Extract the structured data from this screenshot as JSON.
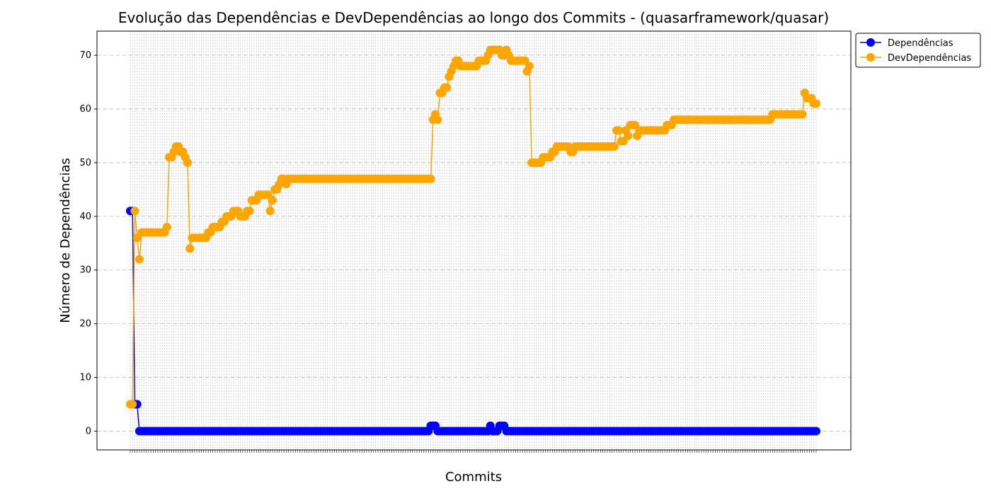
{
  "chart_data": {
    "type": "line",
    "title": "Evolução das Dependências e DevDependências ao longo dos Commits - (quasarframework/quasar)",
    "xlabel": "Commits",
    "ylabel": "Número de Dependências",
    "ylim": [
      -3.5,
      74.5
    ],
    "yticks": [
      0,
      10,
      20,
      30,
      40,
      50,
      60,
      70
    ],
    "grid": true,
    "legend_placement": "upper-right-outside",
    "x_count": 300,
    "series": [
      {
        "name": "Dependências",
        "color": "#0000ff",
        "segments": [
          [
            0,
            41
          ],
          [
            1,
            41
          ],
          [
            2,
            5
          ],
          [
            3,
            5
          ],
          [
            4,
            0
          ],
          [
            130,
            0
          ],
          [
            131,
            1
          ],
          [
            133,
            1
          ],
          [
            134,
            0
          ],
          [
            156,
            0
          ],
          [
            157,
            1
          ],
          [
            158,
            0
          ],
          [
            160,
            0
          ],
          [
            161,
            1
          ],
          [
            163,
            1
          ],
          [
            164,
            0
          ],
          [
            299,
            0
          ]
        ]
      },
      {
        "name": "DevDependências",
        "color": "#ffa500",
        "segments": [
          [
            0,
            5
          ],
          [
            1,
            5
          ],
          [
            2,
            41
          ],
          [
            3,
            36
          ],
          [
            4,
            32
          ],
          [
            5,
            37
          ],
          [
            15,
            37
          ],
          [
            16,
            38
          ],
          [
            17,
            51
          ],
          [
            19,
            52
          ],
          [
            20,
            53
          ],
          [
            22,
            52
          ],
          [
            24,
            51
          ],
          [
            25,
            50
          ],
          [
            26,
            34
          ],
          [
            27,
            36
          ],
          [
            34,
            37
          ],
          [
            36,
            38
          ],
          [
            40,
            39
          ],
          [
            42,
            40
          ],
          [
            45,
            41
          ],
          [
            48,
            40
          ],
          [
            51,
            41
          ],
          [
            53,
            43
          ],
          [
            56,
            44
          ],
          [
            61,
            41
          ],
          [
            62,
            43
          ],
          [
            63,
            45
          ],
          [
            65,
            46
          ],
          [
            66,
            47
          ],
          [
            68,
            46
          ],
          [
            69,
            47
          ],
          [
            131,
            47
          ],
          [
            132,
            58
          ],
          [
            133,
            59
          ],
          [
            134,
            58
          ],
          [
            135,
            63
          ],
          [
            137,
            64
          ],
          [
            139,
            66
          ],
          [
            140,
            67
          ],
          [
            141,
            68
          ],
          [
            142,
            69
          ],
          [
            144,
            68
          ],
          [
            152,
            69
          ],
          [
            156,
            70
          ],
          [
            157,
            71
          ],
          [
            162,
            70
          ],
          [
            164,
            71
          ],
          [
            165,
            70
          ],
          [
            166,
            69
          ],
          [
            172,
            69
          ],
          [
            173,
            67
          ],
          [
            174,
            68
          ],
          [
            175,
            50
          ],
          [
            180,
            51
          ],
          [
            184,
            52
          ],
          [
            186,
            53
          ],
          [
            192,
            52
          ],
          [
            194,
            53
          ],
          [
            211,
            53
          ],
          [
            212,
            56
          ],
          [
            214,
            54
          ],
          [
            216,
            56
          ],
          [
            217,
            55
          ],
          [
            218,
            57
          ],
          [
            221,
            55
          ],
          [
            222,
            56
          ],
          [
            233,
            56
          ],
          [
            234,
            57
          ],
          [
            237,
            58
          ],
          [
            279,
            58
          ],
          [
            280,
            59
          ],
          [
            293,
            59
          ],
          [
            294,
            63
          ],
          [
            295,
            62
          ],
          [
            297,
            62
          ],
          [
            298,
            61
          ],
          [
            299,
            61
          ]
        ]
      }
    ]
  }
}
